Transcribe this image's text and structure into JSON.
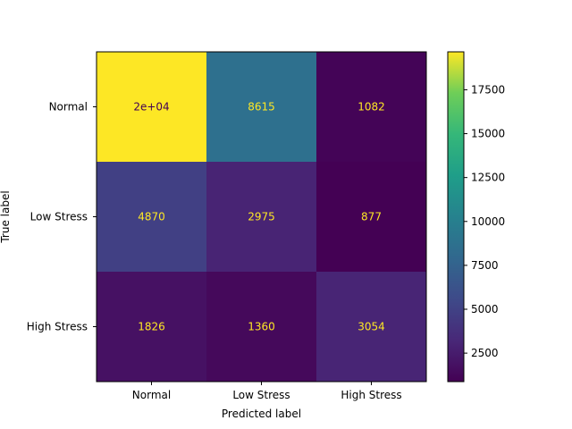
{
  "chart_data": {
    "type": "heatmap",
    "title": "",
    "xlabel": "Predicted label",
    "ylabel": "True label",
    "x_categories": [
      "Normal",
      "Low Stress",
      "High Stress"
    ],
    "y_categories": [
      "Normal",
      "Low Stress",
      "High Stress"
    ],
    "values": [
      [
        19660,
        8615,
        1082
      ],
      [
        4870,
        2975,
        877
      ],
      [
        1826,
        1360,
        3054
      ]
    ],
    "cell_labels": [
      [
        "2e+04",
        "8615",
        "1082"
      ],
      [
        "4870",
        "2975",
        "877"
      ],
      [
        "1826",
        "1360",
        "3054"
      ]
    ],
    "colormap": "viridis",
    "colorbar": {
      "range": [
        877,
        19660
      ],
      "ticks": [
        2500,
        5000,
        7500,
        10000,
        12500,
        15000,
        17500
      ],
      "tick_labels": [
        "2500",
        "5000",
        "7500",
        "10000",
        "12500",
        "15000",
        "17500"
      ]
    },
    "text_color_light": "#fde725",
    "text_color_dark": "#440154",
    "grid": false,
    "legend": "colorbar-right"
  }
}
